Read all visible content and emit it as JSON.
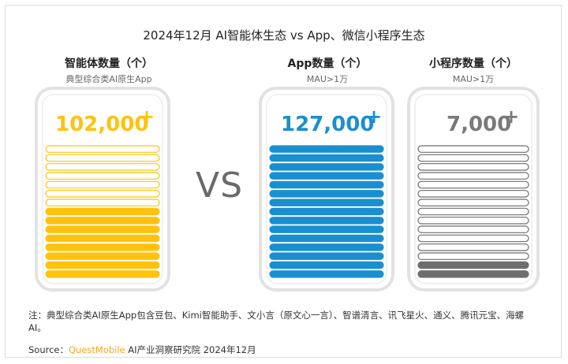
{
  "title": "2024年12月 AI智能体生态 vs App、微信小程序生态",
  "vs_label": "VS",
  "plus_sign": "+",
  "chart_data": {
    "type": "bar",
    "categories": [
      "智能体数量（个）",
      "App数量（个）",
      "小程序数量（个）"
    ],
    "subtitles": [
      "典型综合类AI原生App",
      "MAU>1万",
      "MAU>1万"
    ],
    "values": [
      102000,
      127000,
      7000
    ],
    "value_labels": [
      "102,000",
      "127,000",
      "7,000"
    ],
    "units": "个",
    "fill_fraction": [
      0.5,
      1.0,
      0.1
    ],
    "colors": [
      "#FFC20E",
      "#1A8FD0",
      "#6E6E6E"
    ]
  },
  "footnote": "注：典型综合类AI原生App包含豆包、Kimi智能助手、文小言（原文心一言）、智谱清言、讯飞星火、通义、腾讯元宝、海螺AI。",
  "source_prefix": "Source：",
  "source_brand": "QuestMobile",
  "source_rest": " AI产业洞察研究院 2024年12月"
}
